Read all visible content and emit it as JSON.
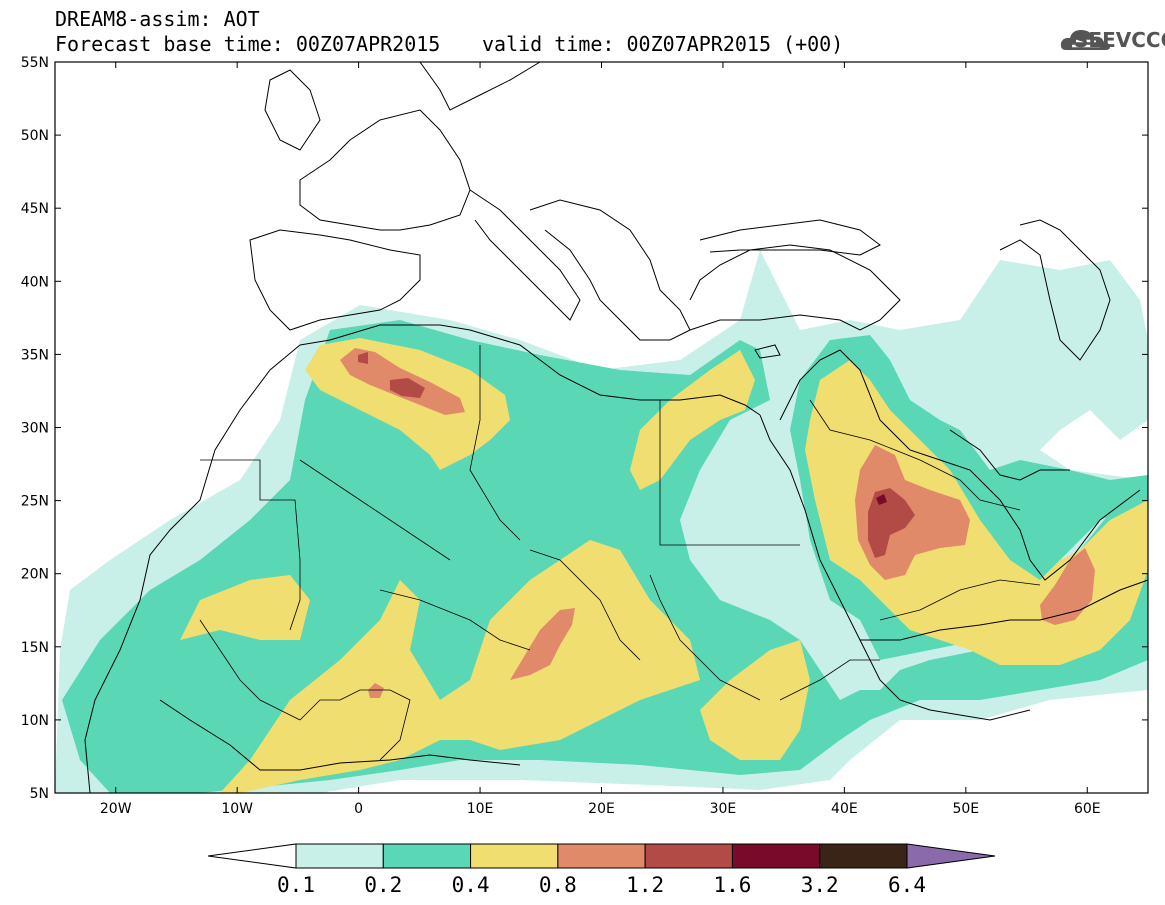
{
  "header": {
    "title_line1": "DREAM8-assim: AOT",
    "title_line2": "Forecast base time: 00Z07APR2015",
    "valid_text": "valid time: 00Z07APR2015 (+00)",
    "logo_text": "SEEVCCC"
  },
  "map": {
    "lat_labels": [
      "55N",
      "50N",
      "45N",
      "40N",
      "35N",
      "30N",
      "25N",
      "20N",
      "15N",
      "10N",
      "5N"
    ],
    "lon_labels": [
      "20W",
      "10W",
      "0",
      "10E",
      "20E",
      "30E",
      "40E",
      "50E",
      "60E"
    ],
    "extent": {
      "lon_min": -25,
      "lon_max": 65,
      "lat_min": 5,
      "lat_max": 55
    }
  },
  "colorbar": {
    "labels": [
      "0.1",
      "0.2",
      "0.4",
      "0.8",
      "1.2",
      "1.6",
      "3.2",
      "6.4"
    ],
    "colors": [
      "#ffffff",
      "#c9f0e8",
      "#5ad8b6",
      "#f1de70",
      "#e08a6a",
      "#b24a45",
      "#7a0a2a",
      "#3a2418",
      "#8a6aaa"
    ]
  }
}
